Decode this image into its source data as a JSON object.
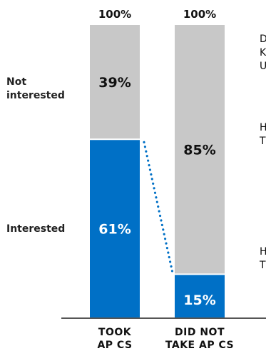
{
  "chart_data": {
    "type": "bar",
    "stacked": true,
    "categories": [
      "TOOK AP CS",
      "DID NOT TAKE AP CS"
    ],
    "category_lines": [
      [
        "TOOK",
        "AP CS"
      ],
      [
        "DID NOT",
        "TAKE AP CS"
      ]
    ],
    "totals": [
      "100%",
      "100%"
    ],
    "series": [
      {
        "name": "Interested",
        "values": [
          61,
          15
        ],
        "labels": [
          "61%",
          "15%"
        ],
        "color": "#0070c6",
        "text_color": "#ffffff"
      },
      {
        "name": "Not interested",
        "values": [
          39,
          85
        ],
        "labels": [
          "39%",
          "85%"
        ],
        "color": "#c8c8c8",
        "text_color": "#111111"
      }
    ],
    "series_labels": [
      [
        "Interested"
      ],
      [
        "Not",
        "interested"
      ]
    ],
    "connector": {
      "style": "dotted",
      "color": "#0070c6"
    },
    "right_notes": [
      [
        "D",
        "K",
        "U"
      ],
      [
        "H",
        "T"
      ],
      [
        "H",
        "T"
      ]
    ],
    "ylim": [
      0,
      100
    ]
  }
}
